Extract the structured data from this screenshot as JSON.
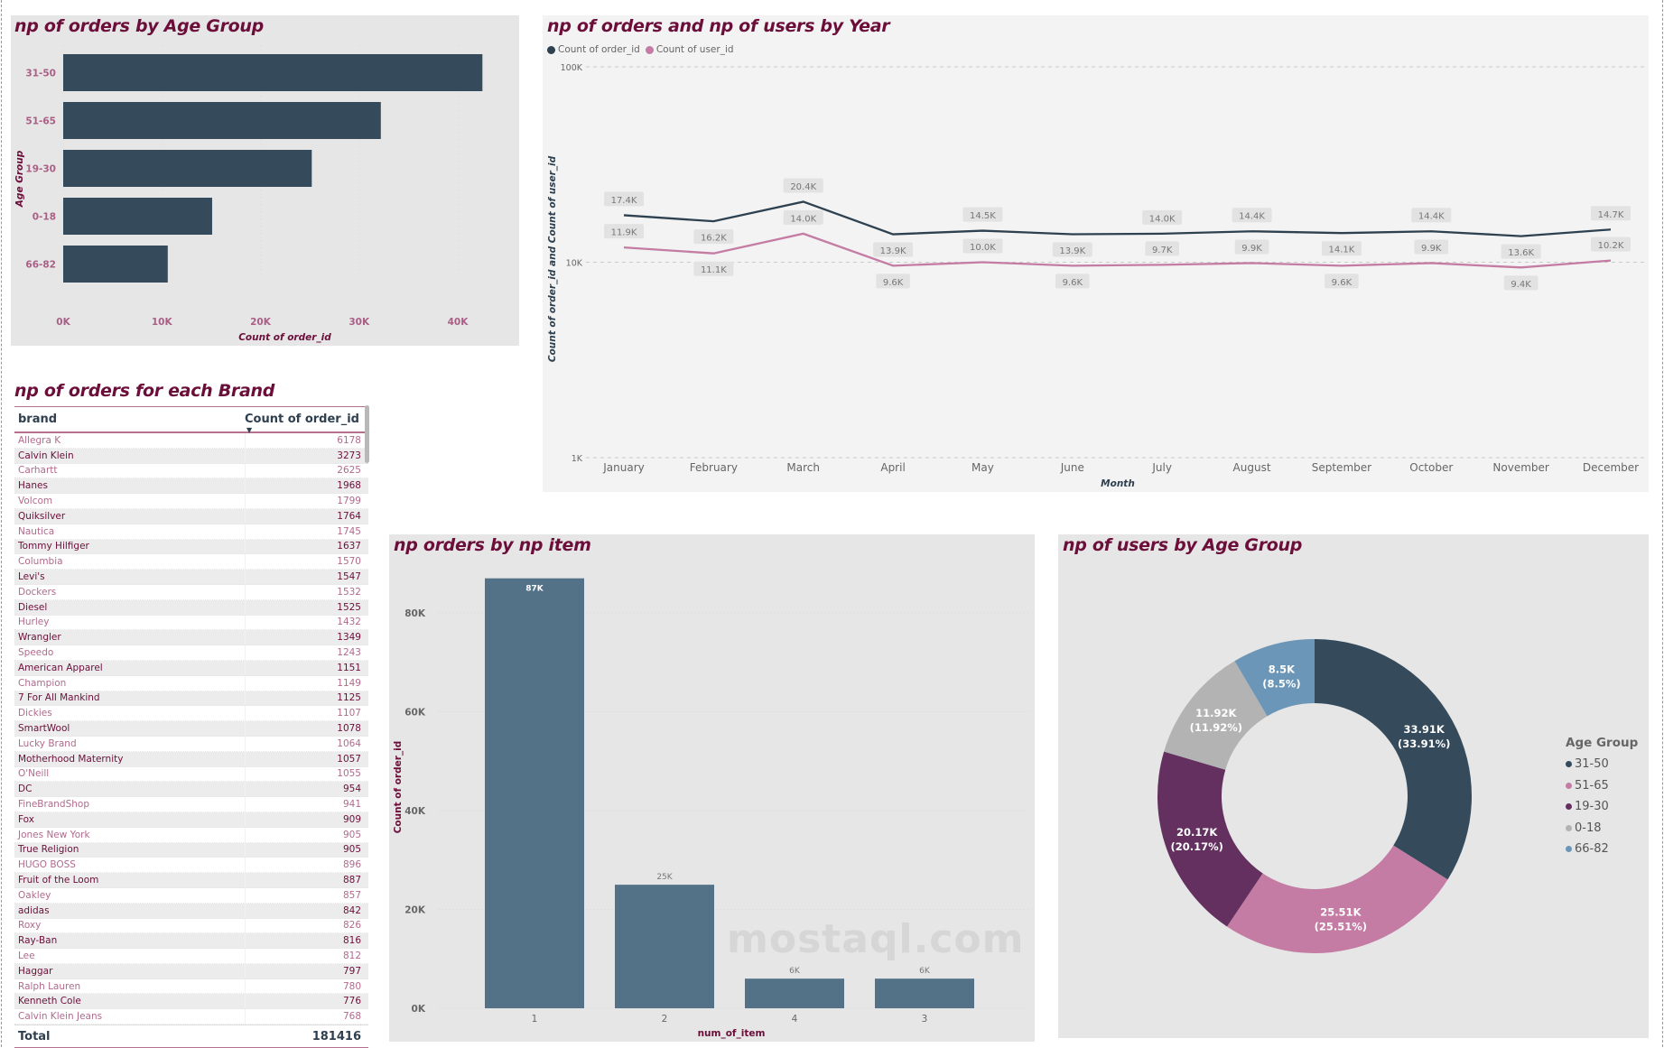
{
  "colors": {
    "title": "#6b0f3a",
    "bar_dark": "#354b5c",
    "bar_blue": "#537187",
    "line_orders": "#2e4150",
    "line_users": "#c47ca4",
    "panel_gray": "#e6e6e6",
    "panel_light": "#f3f3f3"
  },
  "table": {
    "title": "np of orders for each Brand",
    "columns": [
      "brand",
      "Count of order_id"
    ],
    "rows": [
      [
        "Allegra K",
        "6178"
      ],
      [
        "Calvin Klein",
        "3273"
      ],
      [
        "Carhartt",
        "2625"
      ],
      [
        "Hanes",
        "1968"
      ],
      [
        "Volcom",
        "1799"
      ],
      [
        "Quiksilver",
        "1764"
      ],
      [
        "Nautica",
        "1745"
      ],
      [
        "Tommy Hilfiger",
        "1637"
      ],
      [
        "Columbia",
        "1570"
      ],
      [
        "Levi's",
        "1547"
      ],
      [
        "Dockers",
        "1532"
      ],
      [
        "Diesel",
        "1525"
      ],
      [
        "Hurley",
        "1432"
      ],
      [
        "Wrangler",
        "1349"
      ],
      [
        "Speedo",
        "1243"
      ],
      [
        "American Apparel",
        "1151"
      ],
      [
        "Champion",
        "1149"
      ],
      [
        "7 For All Mankind",
        "1125"
      ],
      [
        "Dickies",
        "1107"
      ],
      [
        "SmartWool",
        "1078"
      ],
      [
        "Lucky Brand",
        "1064"
      ],
      [
        "Motherhood Maternity",
        "1057"
      ],
      [
        "O'Neill",
        "1055"
      ],
      [
        "DC",
        "954"
      ],
      [
        "FineBrandShop",
        "941"
      ],
      [
        "Fox",
        "909"
      ],
      [
        "Jones New York",
        "905"
      ],
      [
        "True Religion",
        "905"
      ],
      [
        "HUGO BOSS",
        "896"
      ],
      [
        "Fruit of the Loom",
        "887"
      ],
      [
        "Oakley",
        "857"
      ],
      [
        "adidas",
        "842"
      ],
      [
        "Roxy",
        "826"
      ],
      [
        "Ray-Ban",
        "816"
      ],
      [
        "Lee",
        "812"
      ],
      [
        "Haggar",
        "797"
      ],
      [
        "Ralph Lauren",
        "780"
      ],
      [
        "Kenneth Cole",
        "776"
      ],
      [
        "Calvin Klein Jeans",
        "768"
      ]
    ],
    "total_label": "Total",
    "total_value": "181416"
  },
  "watermark": "mostaql.com",
  "chart_data": [
    {
      "id": "age-bar",
      "type": "bar",
      "orientation": "horizontal",
      "title": "np of orders by Age Group",
      "categories": [
        "31-50",
        "51-65",
        "19-30",
        "0-18",
        "66-82"
      ],
      "values": [
        42500,
        32200,
        25200,
        15100,
        10600
      ],
      "xlabel": "Count of order_id",
      "ylabel": "Age Group",
      "xlim": [
        0,
        45000
      ],
      "xticks": [
        0,
        10000,
        20000,
        30000,
        40000
      ],
      "xtick_labels": [
        "0K",
        "10K",
        "20K",
        "30K",
        "40K"
      ],
      "grid": true
    },
    {
      "id": "month-line",
      "type": "line",
      "title": "np of orders and np of users by Year",
      "x": [
        "January",
        "February",
        "March",
        "April",
        "May",
        "June",
        "July",
        "August",
        "September",
        "October",
        "November",
        "December"
      ],
      "series": [
        {
          "name": "Count of order_id",
          "values": [
            17400,
            16200,
            20400,
            13900,
            14500,
            13900,
            14000,
            14400,
            14100,
            14400,
            13600,
            14700
          ],
          "labels": [
            "17.4K",
            "16.2K",
            "20.4K",
            "13.9K",
            "14.5K",
            "13.9K",
            "14.0K",
            "14.4K",
            "14.1K",
            "14.4K",
            "13.6K",
            "14.7K"
          ]
        },
        {
          "name": "Count of user_id",
          "values": [
            11900,
            11100,
            14000,
            9600,
            10000,
            9600,
            9700,
            9900,
            9600,
            9900,
            9400,
            10200
          ],
          "labels": [
            "11.9K",
            "11.1K",
            "14.0K",
            "9.6K",
            "10.0K",
            "9.6K",
            "9.7K",
            "9.9K",
            "9.6K",
            "9.9K",
            "9.4K",
            "10.2K"
          ]
        }
      ],
      "xlabel": "Month",
      "ylabel": "Count of order_id and Count of user_id",
      "yscale": "log",
      "ylim": [
        1000,
        100000
      ],
      "yticks": [
        1000,
        10000,
        100000
      ],
      "ytick_labels": [
        "1K",
        "10K",
        "100K"
      ],
      "legend": "top-left",
      "grid": true
    },
    {
      "id": "item-bar",
      "type": "bar",
      "title": "np orders by np item",
      "categories": [
        "1",
        "2",
        "4",
        "3"
      ],
      "values": [
        87000,
        25000,
        6000,
        6000
      ],
      "labels": [
        "87K",
        "25K",
        "6K",
        "6K"
      ],
      "xlabel": "num_of_item",
      "ylabel": "Count of order_id",
      "ylim": [
        0,
        87000
      ],
      "yticks": [
        0,
        20000,
        40000,
        60000,
        80000
      ],
      "ytick_labels": [
        "0K",
        "20K",
        "40K",
        "60K",
        "80K"
      ],
      "grid": true
    },
    {
      "id": "age-donut",
      "type": "pie",
      "donut": true,
      "title": "np of users by Age Group",
      "categories": [
        "31-50",
        "51-65",
        "19-30",
        "0-18",
        "66-82"
      ],
      "values": [
        33910,
        25510,
        20170,
        11920,
        8500
      ],
      "labels": [
        "33.91K",
        "25.51K",
        "20.17K",
        "11.92K",
        "8.5K"
      ],
      "percents": [
        "(33.91%)",
        "(25.51%)",
        "(20.17%)",
        "(11.92%)",
        "(8.5%)"
      ],
      "colors": [
        "#354b5c",
        "#c47ca4",
        "#64305f",
        "#b3b3b3",
        "#6b96b7"
      ],
      "legend_title": "Age Group",
      "legend": "right"
    }
  ]
}
